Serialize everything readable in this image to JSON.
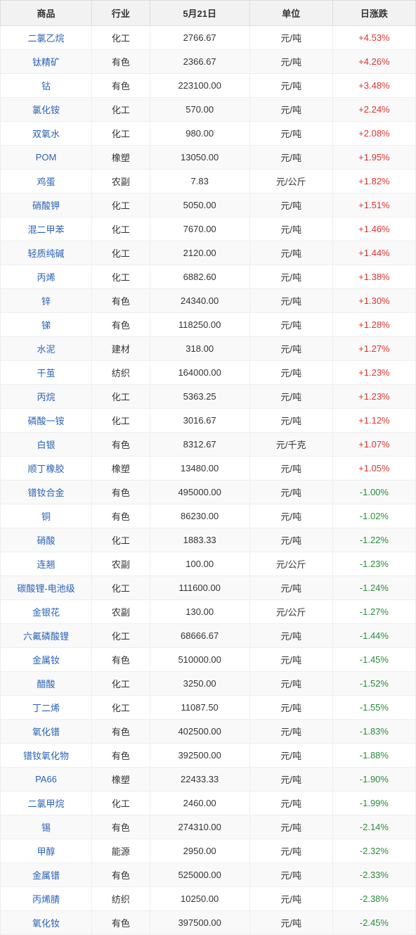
{
  "table": {
    "columns": [
      "商品",
      "行业",
      "5月21日",
      "单位",
      "日涨跌"
    ],
    "header_bg": "#f2f2f2",
    "header_color": "#333333",
    "row_even_bg": "#f9f9f9",
    "row_odd_bg": "#ffffff",
    "border_color": "#eeeeee",
    "product_color": "#2962b8",
    "up_color": "#e03131",
    "down_color": "#2b8a3e",
    "rows": [
      {
        "product": "二氯乙烷",
        "industry": "化工",
        "price": "2766.67",
        "unit": "元/吨",
        "change": "+4.53%",
        "dir": "up"
      },
      {
        "product": "钛精矿",
        "industry": "有色",
        "price": "2366.67",
        "unit": "元/吨",
        "change": "+4.26%",
        "dir": "up"
      },
      {
        "product": "钴",
        "industry": "有色",
        "price": "223100.00",
        "unit": "元/吨",
        "change": "+3.48%",
        "dir": "up"
      },
      {
        "product": "氯化铵",
        "industry": "化工",
        "price": "570.00",
        "unit": "元/吨",
        "change": "+2.24%",
        "dir": "up"
      },
      {
        "product": "双氧水",
        "industry": "化工",
        "price": "980.00",
        "unit": "元/吨",
        "change": "+2.08%",
        "dir": "up"
      },
      {
        "product": "POM",
        "industry": "橡塑",
        "price": "13050.00",
        "unit": "元/吨",
        "change": "+1.95%",
        "dir": "up"
      },
      {
        "product": "鸡蛋",
        "industry": "农副",
        "price": "7.83",
        "unit": "元/公斤",
        "change": "+1.82%",
        "dir": "up"
      },
      {
        "product": "硝酸钾",
        "industry": "化工",
        "price": "5050.00",
        "unit": "元/吨",
        "change": "+1.51%",
        "dir": "up"
      },
      {
        "product": "混二甲苯",
        "industry": "化工",
        "price": "7670.00",
        "unit": "元/吨",
        "change": "+1.46%",
        "dir": "up"
      },
      {
        "product": "轻质纯碱",
        "industry": "化工",
        "price": "2120.00",
        "unit": "元/吨",
        "change": "+1.44%",
        "dir": "up"
      },
      {
        "product": "丙烯",
        "industry": "化工",
        "price": "6882.60",
        "unit": "元/吨",
        "change": "+1.38%",
        "dir": "up"
      },
      {
        "product": "锌",
        "industry": "有色",
        "price": "24340.00",
        "unit": "元/吨",
        "change": "+1.30%",
        "dir": "up"
      },
      {
        "product": "锑",
        "industry": "有色",
        "price": "118250.00",
        "unit": "元/吨",
        "change": "+1.28%",
        "dir": "up"
      },
      {
        "product": "水泥",
        "industry": "建材",
        "price": "318.00",
        "unit": "元/吨",
        "change": "+1.27%",
        "dir": "up"
      },
      {
        "product": "干茧",
        "industry": "纺织",
        "price": "164000.00",
        "unit": "元/吨",
        "change": "+1.23%",
        "dir": "up"
      },
      {
        "product": "丙烷",
        "industry": "化工",
        "price": "5363.25",
        "unit": "元/吨",
        "change": "+1.23%",
        "dir": "up"
      },
      {
        "product": "磷酸一铵",
        "industry": "化工",
        "price": "3016.67",
        "unit": "元/吨",
        "change": "+1.12%",
        "dir": "up"
      },
      {
        "product": "白银",
        "industry": "有色",
        "price": "8312.67",
        "unit": "元/千克",
        "change": "+1.07%",
        "dir": "up"
      },
      {
        "product": "顺丁橡胶",
        "industry": "橡塑",
        "price": "13480.00",
        "unit": "元/吨",
        "change": "+1.05%",
        "dir": "up"
      },
      {
        "product": "镨钕合金",
        "industry": "有色",
        "price": "495000.00",
        "unit": "元/吨",
        "change": "-1.00%",
        "dir": "down"
      },
      {
        "product": "铜",
        "industry": "有色",
        "price": "86230.00",
        "unit": "元/吨",
        "change": "-1.02%",
        "dir": "down"
      },
      {
        "product": "硝酸",
        "industry": "化工",
        "price": "1883.33",
        "unit": "元/吨",
        "change": "-1.22%",
        "dir": "down"
      },
      {
        "product": "连翘",
        "industry": "农副",
        "price": "100.00",
        "unit": "元/公斤",
        "change": "-1.23%",
        "dir": "down"
      },
      {
        "product": "碳酸锂-电池级",
        "industry": "化工",
        "price": "111600.00",
        "unit": "元/吨",
        "change": "-1.24%",
        "dir": "down"
      },
      {
        "product": "金银花",
        "industry": "农副",
        "price": "130.00",
        "unit": "元/公斤",
        "change": "-1.27%",
        "dir": "down"
      },
      {
        "product": "六氟磷酸锂",
        "industry": "化工",
        "price": "68666.67",
        "unit": "元/吨",
        "change": "-1.44%",
        "dir": "down"
      },
      {
        "product": "金属钕",
        "industry": "有色",
        "price": "510000.00",
        "unit": "元/吨",
        "change": "-1.45%",
        "dir": "down"
      },
      {
        "product": "醋酸",
        "industry": "化工",
        "price": "3250.00",
        "unit": "元/吨",
        "change": "-1.52%",
        "dir": "down"
      },
      {
        "product": "丁二烯",
        "industry": "化工",
        "price": "11087.50",
        "unit": "元/吨",
        "change": "-1.55%",
        "dir": "down"
      },
      {
        "product": "氧化镨",
        "industry": "有色",
        "price": "402500.00",
        "unit": "元/吨",
        "change": "-1.83%",
        "dir": "down"
      },
      {
        "product": "镨钕氧化物",
        "industry": "有色",
        "price": "392500.00",
        "unit": "元/吨",
        "change": "-1.88%",
        "dir": "down"
      },
      {
        "product": "PA66",
        "industry": "橡塑",
        "price": "22433.33",
        "unit": "元/吨",
        "change": "-1.90%",
        "dir": "down"
      },
      {
        "product": "二氯甲烷",
        "industry": "化工",
        "price": "2460.00",
        "unit": "元/吨",
        "change": "-1.99%",
        "dir": "down"
      },
      {
        "product": "锡",
        "industry": "有色",
        "price": "274310.00",
        "unit": "元/吨",
        "change": "-2.14%",
        "dir": "down"
      },
      {
        "product": "甲醇",
        "industry": "能源",
        "price": "2950.00",
        "unit": "元/吨",
        "change": "-2.32%",
        "dir": "down"
      },
      {
        "product": "金属镨",
        "industry": "有色",
        "price": "525000.00",
        "unit": "元/吨",
        "change": "-2.33%",
        "dir": "down"
      },
      {
        "product": "丙烯腈",
        "industry": "纺织",
        "price": "10250.00",
        "unit": "元/吨",
        "change": "-2.38%",
        "dir": "down"
      },
      {
        "product": "氧化钕",
        "industry": "有色",
        "price": "397500.00",
        "unit": "元/吨",
        "change": "-2.45%",
        "dir": "down"
      }
    ]
  }
}
